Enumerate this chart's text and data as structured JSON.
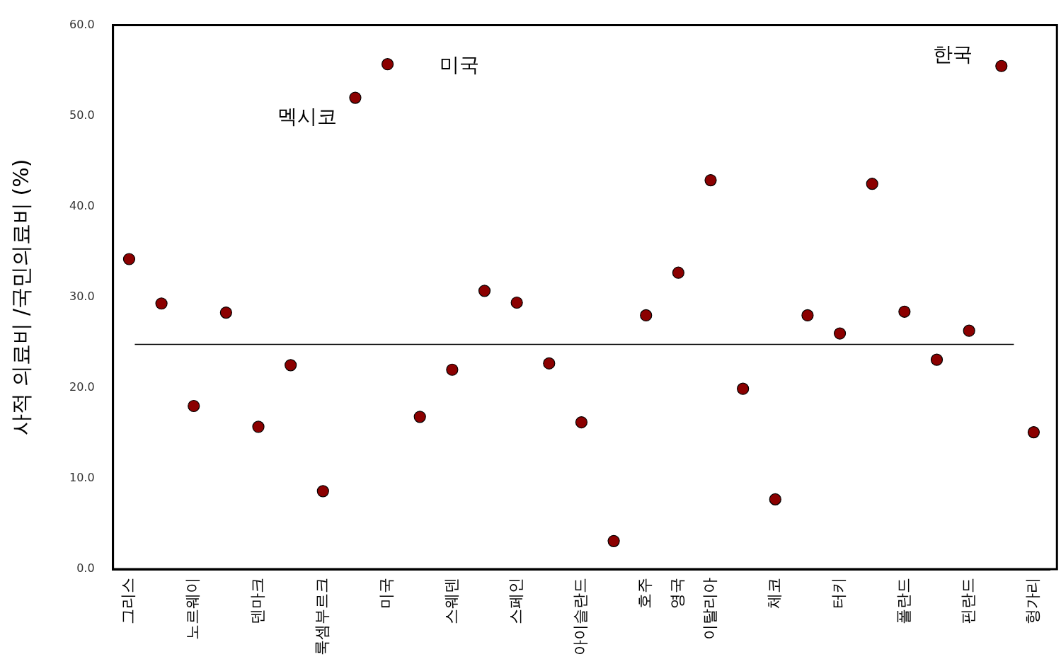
{
  "chart_data": {
    "type": "scatter",
    "ylabel": "사적 의료비 /국민의료비 (%)",
    "categories": [
      "그리스",
      null,
      "노르웨이",
      null,
      "덴마크",
      null,
      "룩셈부르크",
      null,
      "미국",
      null,
      "스웨덴",
      null,
      "스페인",
      null,
      "아이슬란드",
      null,
      "호주",
      "영국",
      "이탈리아",
      null,
      "체코",
      null,
      "터키",
      null,
      "폴란드",
      null,
      "핀란드",
      null,
      "헝가리"
    ],
    "values": [
      34.2,
      29.3,
      18.0,
      28.3,
      15.7,
      22.5,
      8.6,
      52.0,
      55.7,
      16.8,
      22.0,
      30.7,
      29.4,
      22.7,
      16.2,
      3.1,
      28.0,
      32.7,
      42.9,
      19.9,
      7.7,
      28.0,
      26.0,
      42.5,
      28.4,
      23.1,
      26.3,
      55.5,
      15.1
    ],
    "color": "#8b0000",
    "marker": "circle",
    "ylim": [
      0,
      60
    ],
    "yticks": [
      {
        "value": 0,
        "label": "0.0"
      },
      {
        "value": 10,
        "label": "10.0"
      },
      {
        "value": 20,
        "label": "20.0"
      },
      {
        "value": 30,
        "label": "30.0"
      },
      {
        "value": 40,
        "label": "40.0"
      },
      {
        "value": 50,
        "label": "50.0"
      },
      {
        "value": 60,
        "label": "60.0"
      }
    ],
    "grid": false,
    "legend": false,
    "ref_lines": [
      {
        "axis": "y",
        "value": 24.8,
        "color": "#000000"
      }
    ],
    "annotations": [
      "멕시코",
      "미국",
      "한국"
    ]
  }
}
